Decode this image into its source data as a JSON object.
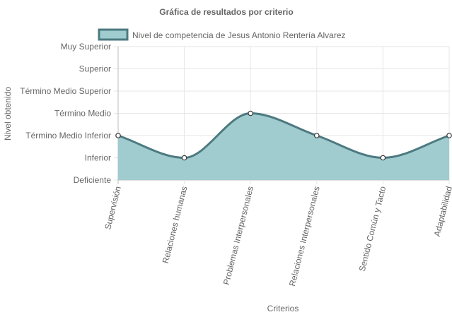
{
  "chart_data": {
    "type": "area",
    "title": "Gráfica de resultados por criterio",
    "xlabel": "Criterios",
    "ylabel": "Nivel obtenido",
    "y_levels": [
      "Deficiente",
      "Inferior",
      "Término Medio Inferior",
      "Término Medio",
      "Término Medio Superior",
      "Superior",
      "Muy Superior"
    ],
    "categories": [
      "Supervisión",
      "Relaciones humanas",
      "Problemas Interpersonales",
      "Relaciones Interpersonales",
      "Sentido Común y Tacto",
      "Adaptabilidad"
    ],
    "series": [
      {
        "name": "Nivel de competencia de Jesus Antonio Rentería Alvarez",
        "values": [
          2,
          1,
          3,
          2,
          1,
          2
        ],
        "value_labels": [
          "Término Medio Inferior",
          "Inferior",
          "Término Medio",
          "Término Medio Inferior",
          "Inferior",
          "Término Medio Inferior"
        ]
      }
    ],
    "ylim": [
      0,
      6
    ],
    "grid": true,
    "legend_position": "top",
    "colors": {
      "fill": "#a0cccf",
      "line": "#4c7a80",
      "point_fill": "#ffffff",
      "grid": "#e6e6e6",
      "axis": "#bdbdbd",
      "text": "#666666"
    }
  }
}
